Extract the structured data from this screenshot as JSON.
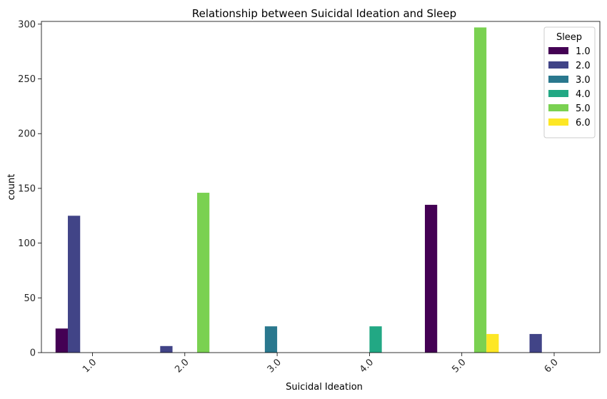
{
  "chart_data": {
    "type": "bar",
    "title": "Relationship between Suicidal Ideation and Sleep",
    "xlabel": "Suicidal Ideation",
    "ylabel": "count",
    "categories": [
      "1.0",
      "2.0",
      "3.0",
      "4.0",
      "5.0",
      "6.0"
    ],
    "ylim": [
      0,
      310
    ],
    "yticks": [
      0,
      50,
      100,
      150,
      200,
      250,
      300
    ],
    "grid": false,
    "legend": {
      "title": "Sleep",
      "placement": "top-right"
    },
    "series": [
      {
        "name": "1.0",
        "color": "#440154",
        "values": [
          22,
          0,
          0,
          0,
          135,
          0
        ]
      },
      {
        "name": "2.0",
        "color": "#414487",
        "values": [
          125,
          6,
          0,
          0,
          0,
          17
        ]
      },
      {
        "name": "3.0",
        "color": "#2a788e",
        "values": [
          0,
          0,
          24,
          0,
          0,
          0
        ]
      },
      {
        "name": "4.0",
        "color": "#22a884",
        "values": [
          0,
          0,
          0,
          24,
          0,
          0
        ]
      },
      {
        "name": "5.0",
        "color": "#7ad151",
        "values": [
          0,
          146,
          0,
          0,
          297,
          0
        ]
      },
      {
        "name": "6.0",
        "color": "#fde725",
        "values": [
          0,
          0,
          0,
          0,
          17,
          0
        ]
      }
    ]
  }
}
